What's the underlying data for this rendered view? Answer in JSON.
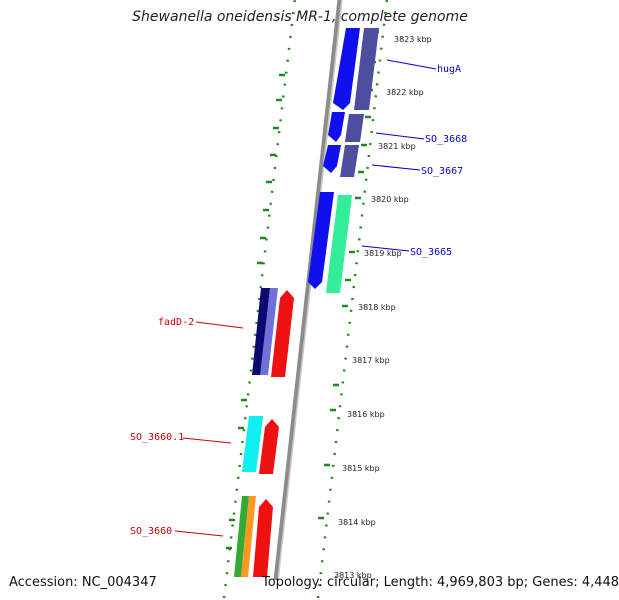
{
  "title": "Shewanella oneidensis MR-1, complete genome",
  "footer": {
    "accession": "Accession: NC_004347",
    "topology": "Topology: circular; Length: 4,969,803 bp; Genes: 4,448"
  },
  "kbp_ticks": [
    "3823 kbp",
    "3822 kbp",
    "3821 kbp",
    "3820 kbp",
    "3819 kbp",
    "3818 kbp",
    "3817 kbp",
    "3816 kbp",
    "3815 kbp",
    "3814 kbp",
    "3813 kbp"
  ],
  "genes_forward": [
    "hugA",
    "SO_3668",
    "SO_3667",
    "SO_3665"
  ],
  "genes_reverse": [
    "fadD-2",
    "SO_3660.1",
    "SO_3660"
  ],
  "colors": {
    "forward_label": "#0000cc",
    "reverse_label": "#cc0000",
    "dots": "#1e8a1e",
    "backbone": "#8c8c8c"
  }
}
